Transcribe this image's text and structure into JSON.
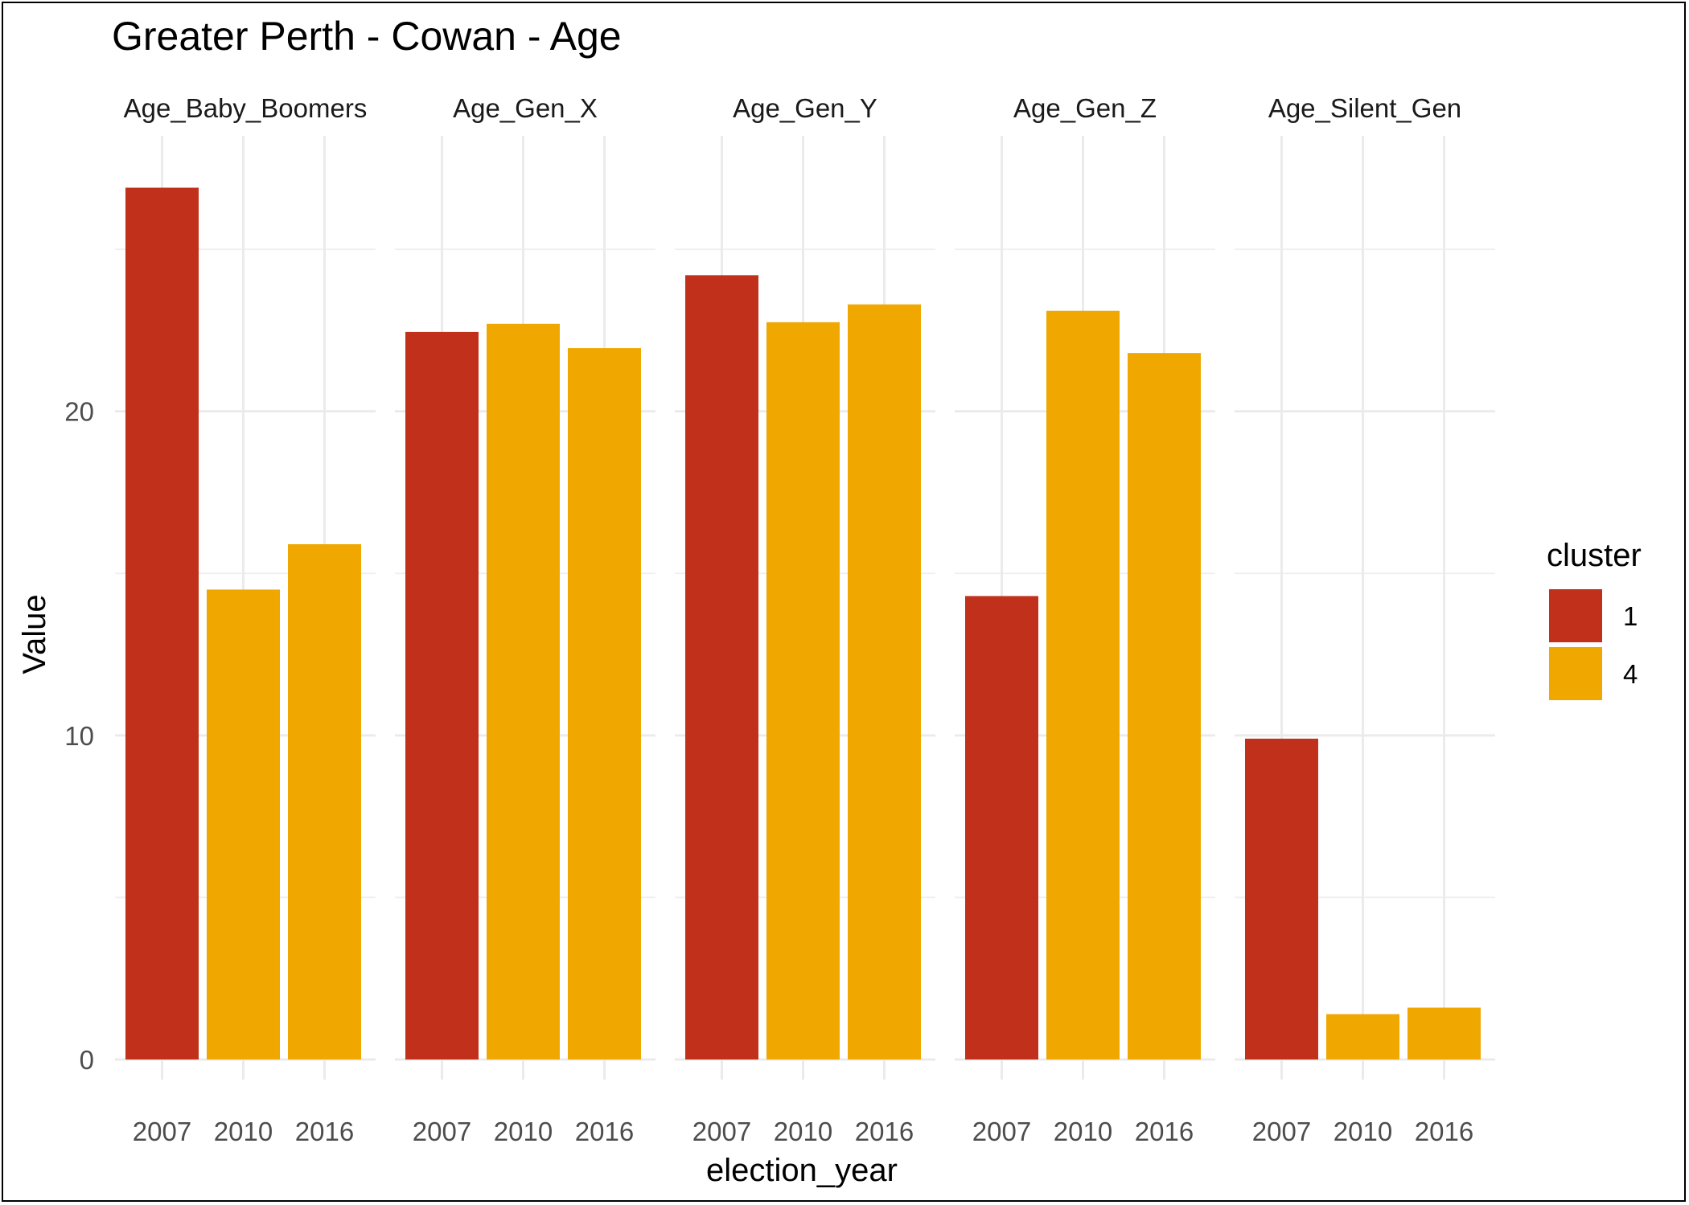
{
  "chart_data": {
    "type": "bar",
    "title": "Greater Perth - Cowan - Age",
    "xlabel": "election_year",
    "ylabel": "Value",
    "ylim": [
      0,
      28.5
    ],
    "yticks": [
      0,
      10,
      20
    ],
    "grid": true,
    "legend": {
      "title": "cluster",
      "position": "right",
      "entries": [
        {
          "label": "1",
          "color": "#C0301A"
        },
        {
          "label": "4",
          "color": "#F0A800"
        }
      ]
    },
    "categories": [
      "2007",
      "2010",
      "2016"
    ],
    "panels": [
      {
        "name": "Age_Baby_Boomers",
        "values": [
          26.9,
          14.5,
          15.9
        ],
        "cluster": [
          "1",
          "4",
          "4"
        ]
      },
      {
        "name": "Age_Gen_X",
        "values": [
          22.45,
          22.7,
          21.95
        ],
        "cluster": [
          "1",
          "4",
          "4"
        ]
      },
      {
        "name": "Age_Gen_Y",
        "values": [
          24.2,
          22.75,
          23.3
        ],
        "cluster": [
          "1",
          "4",
          "4"
        ]
      },
      {
        "name": "Age_Gen_Z",
        "values": [
          14.3,
          23.1,
          21.8
        ],
        "cluster": [
          "1",
          "4",
          "4"
        ]
      },
      {
        "name": "Age_Silent_Gen",
        "values": [
          9.9,
          1.4,
          1.6
        ],
        "cluster": [
          "1",
          "4",
          "4"
        ]
      }
    ]
  }
}
